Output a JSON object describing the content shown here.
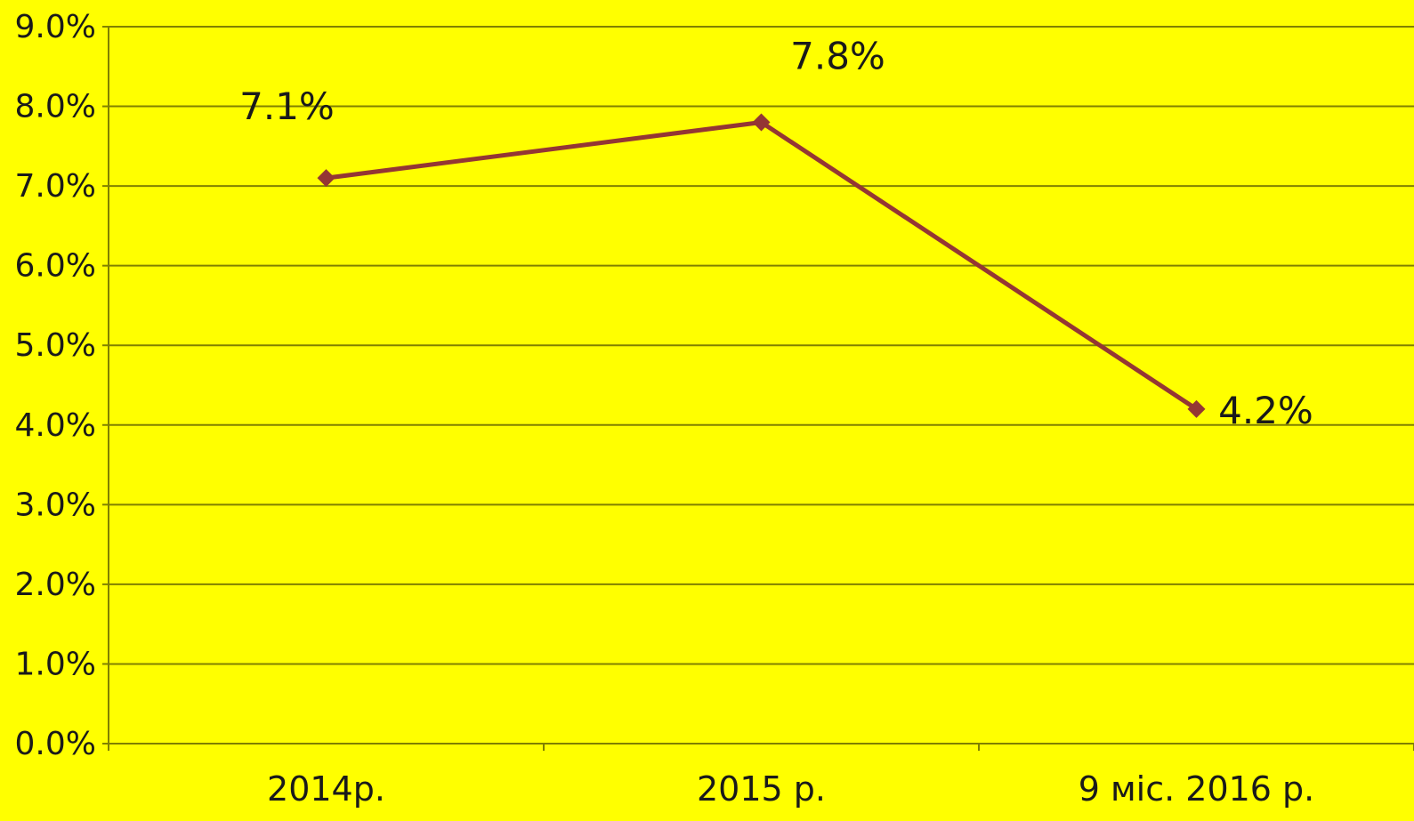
{
  "chart_data": {
    "type": "line",
    "categories": [
      "2014р.",
      "2015 р.",
      "9 міс. 2016 р."
    ],
    "series": [
      {
        "values": [
          7.1,
          7.8,
          4.2
        ],
        "data_labels": [
          "7.1%",
          "7.8%",
          "4.2%"
        ],
        "color": "#943634"
      }
    ],
    "ylim": [
      0,
      9
    ],
    "yticks": [
      0,
      1,
      2,
      3,
      4,
      5,
      6,
      7,
      8,
      9
    ],
    "ytick_labels": [
      "0.0%",
      "1.0%",
      "2.0%",
      "3.0%",
      "4.0%",
      "5.0%",
      "6.0%",
      "7.0%",
      "8.0%",
      "9.0%"
    ],
    "grid": true,
    "legend": "none",
    "background_color": "#FFFF00",
    "gridline_color": "#808000",
    "text_color": "#1a1a1a"
  }
}
